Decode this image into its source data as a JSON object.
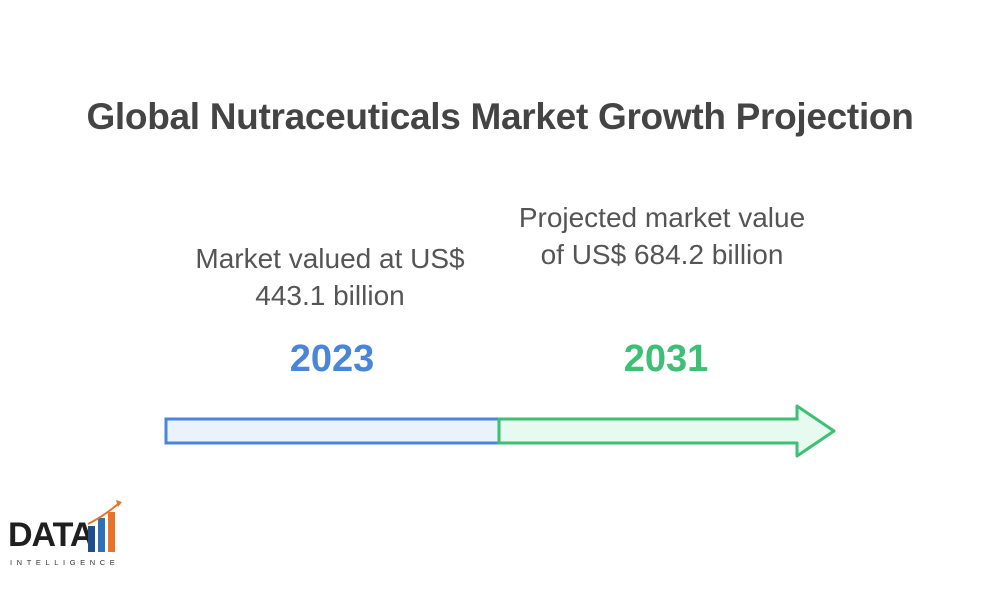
{
  "title": "Global Nutraceuticals Market Growth Projection",
  "milestones": [
    {
      "year": "2023",
      "description": "Market valued at US$ 443.1 billion",
      "value_billion_usd": 443.1,
      "color": "#4a86d8"
    },
    {
      "year": "2031",
      "description": "Projected market value of US$ 684.2 billion",
      "value_billion_usd": 684.2,
      "color": "#3dbf76"
    }
  ],
  "logo": {
    "word": "DATA",
    "sub": "INTELLIGENCE",
    "icon": "bar-chart-logo-icon"
  }
}
